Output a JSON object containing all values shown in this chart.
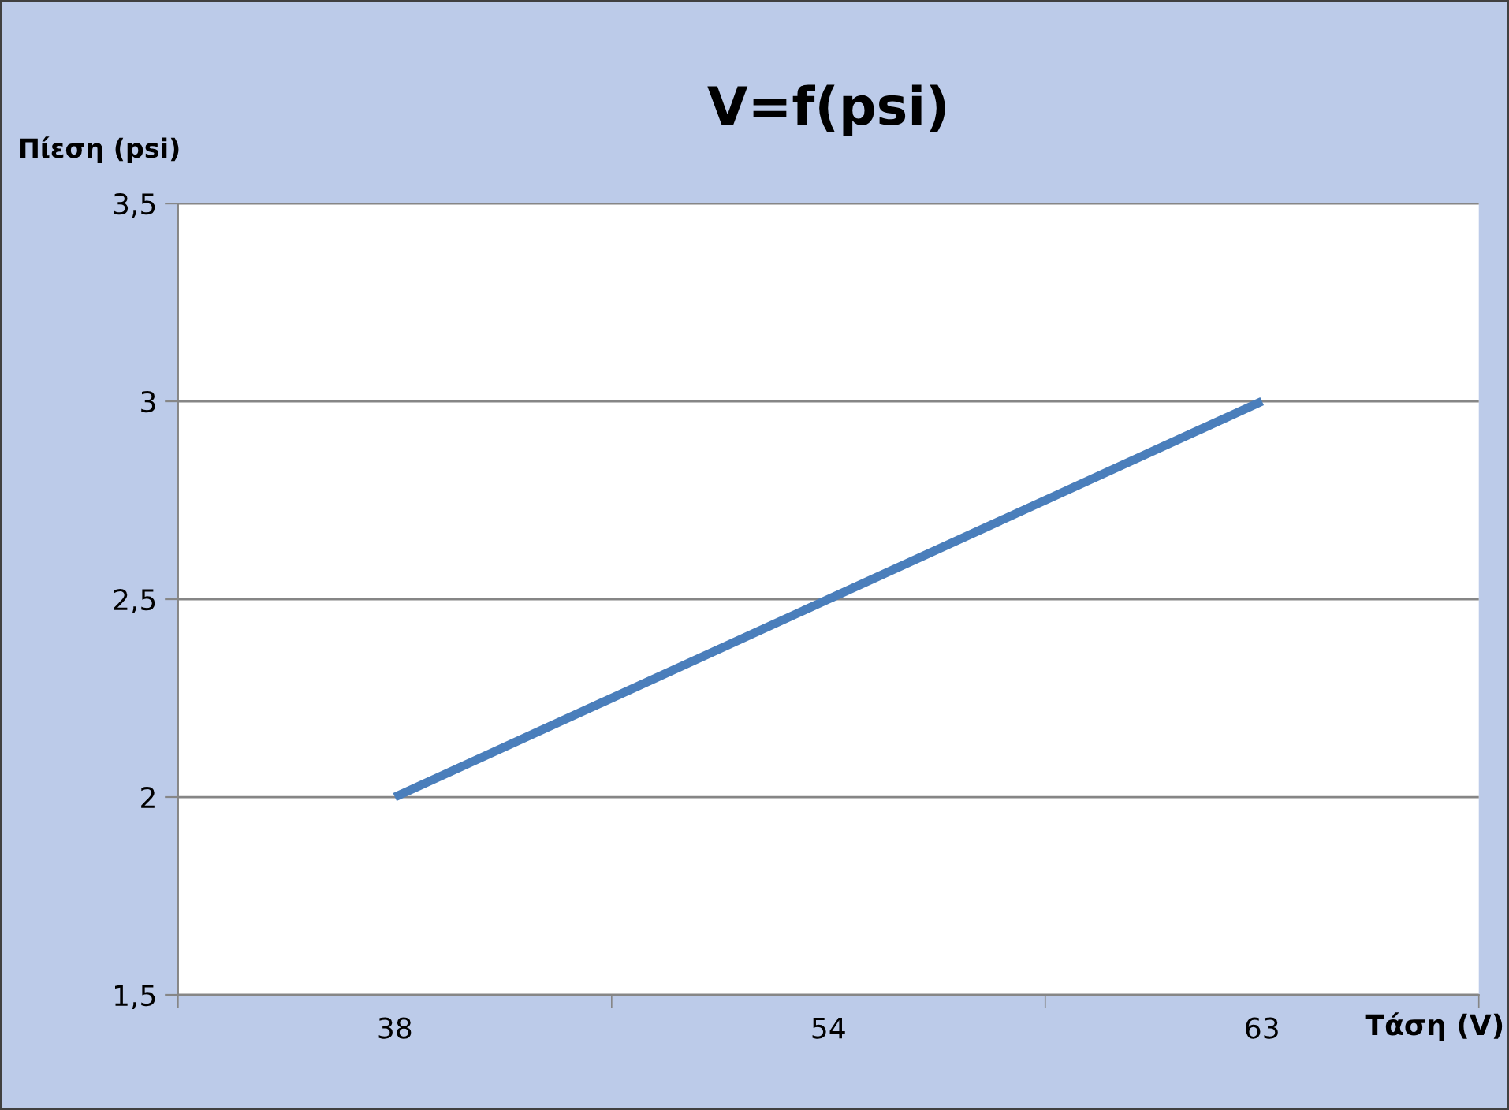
{
  "chart_data": {
    "type": "line",
    "title": "V=f(psi)",
    "ylabel": "Πίεση (psi)",
    "xlabel": "Τάση (V)",
    "categories": [
      "38",
      "54",
      "63"
    ],
    "series": [
      {
        "color": "#4a7ebb",
        "values": [
          2,
          2.5,
          3
        ]
      }
    ],
    "ylim": [
      1.5,
      3.5
    ],
    "yticks": [
      {
        "value": 1.5,
        "label": "1,5"
      },
      2,
      {
        "value": 2.5,
        "label": "2,5"
      },
      3,
      {
        "value": 3.5,
        "label": "3,5"
      }
    ],
    "grid": "y",
    "marker": "none",
    "line_style": "solid"
  }
}
